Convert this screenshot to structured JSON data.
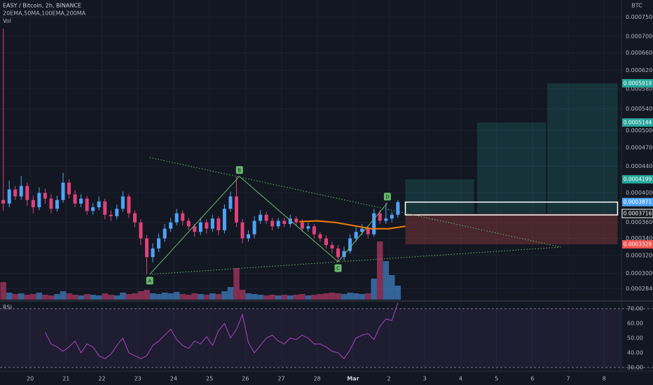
{
  "chart_data": {
    "type": "candlestick",
    "title": "EASY / Bitcoin, 2h, BINANCE",
    "indicators": "20EMA,50MA,100EMA,200MA",
    "volume_label": "Vol",
    "rsi_label": "RSI",
    "currency": "BTC",
    "log_scale": true,
    "up_color": "#4fa3f7",
    "down_color": "#e0417a",
    "xlim": [
      -20.2,
      395.6
    ],
    "xticks": [
      {
        "value": 0,
        "label": "20"
      },
      {
        "value": 24,
        "label": "21"
      },
      {
        "value": 48,
        "label": "22"
      },
      {
        "value": 72,
        "label": "23"
      },
      {
        "value": 96,
        "label": "24"
      },
      {
        "value": 120,
        "label": "25"
      },
      {
        "value": 144,
        "label": "26"
      },
      {
        "value": 168,
        "label": "27"
      },
      {
        "value": 192,
        "label": "28"
      },
      {
        "value": 216,
        "label": "Mar"
      },
      {
        "value": 240,
        "label": "2"
      },
      {
        "value": 264,
        "label": "3"
      },
      {
        "value": 288,
        "label": "4"
      },
      {
        "value": 312,
        "label": "5"
      },
      {
        "value": 336,
        "label": "6"
      },
      {
        "value": 360,
        "label": "7"
      },
      {
        "value": 384,
        "label": "8"
      }
    ],
    "ylim": [
      0.0002732,
      0.000797
    ],
    "yticks": [
      {
        "value": 0.00075,
        "label": "0.0007500"
      },
      {
        "value": 0.0007,
        "label": "0.0007000"
      },
      {
        "value": 0.00066,
        "label": "0.0006600"
      },
      {
        "value": 0.00062,
        "label": "0.0006200"
      },
      {
        "value": 0.00058,
        "label": "0.0005800"
      },
      {
        "value": 0.00054,
        "label": "0.0005400"
      },
      {
        "value": 0.0005,
        "label": "0.0005000"
      },
      {
        "value": 0.00047,
        "label": "0.0004700"
      },
      {
        "value": 0.00044,
        "label": "0.0004400"
      },
      {
        "value": 0.0004,
        "label": "0.0004000"
      },
      {
        "value": 0.00036,
        "label": "0.0003600"
      },
      {
        "value": 0.00034,
        "label": "0.0003400"
      },
      {
        "value": 0.00032,
        "label": "0.0003200"
      },
      {
        "value": 0.0003,
        "label": "0.0003000"
      },
      {
        "value": 0.000284,
        "label": "0.0002840"
      }
    ],
    "x": [
      -18,
      -14,
      -10,
      -6,
      -2,
      2,
      6,
      10,
      14,
      18,
      22,
      26,
      30,
      34,
      38,
      42,
      46,
      50,
      54,
      58,
      62,
      66,
      70,
      74,
      78,
      82,
      86,
      90,
      94,
      98,
      102,
      106,
      110,
      114,
      118,
      122,
      126,
      130,
      134,
      138,
      142,
      146,
      150,
      154,
      158,
      162,
      166,
      170,
      174,
      178,
      182,
      186,
      190,
      194,
      198,
      202,
      206,
      210,
      214,
      218,
      222,
      226,
      230,
      234,
      238,
      242,
      246
    ],
    "open": [
      0.00039,
      0.000385,
      0.000405,
      0.000395,
      0.00041,
      0.00039,
      0.00038,
      0.0004,
      0.000392,
      0.000378,
      0.00039,
      0.000415,
      0.000398,
      0.000385,
      0.000392,
      0.000375,
      0.00038,
      0.000388,
      0.00037,
      0.000368,
      0.000378,
      0.000395,
      0.000372,
      0.00036,
      0.00034,
      0.000318,
      0.000328,
      0.00034,
      0.000352,
      0.00036,
      0.000372,
      0.000362,
      0.000355,
      0.000348,
      0.00036,
      0.000352,
      0.000365,
      0.00035,
      0.000378,
      0.000395,
      0.00036,
      0.00034,
      0.000345,
      0.000362,
      0.00037,
      0.000362,
      0.000355,
      0.000362,
      0.000358,
      0.000365,
      0.00036,
      0.000352,
      0.000355,
      0.000345,
      0.00034,
      0.000332,
      0.000328,
      0.000318,
      0.000325,
      0.00034,
      0.000348,
      0.000352,
      0.000345,
      0.000372,
      0.000362,
      0.000365,
      0.00037
    ],
    "high": [
      0.00072,
      0.000418,
      0.00041,
      0.000425,
      0.000415,
      0.000396,
      0.000408,
      0.000406,
      0.000398,
      0.000396,
      0.00043,
      0.00042,
      0.000404,
      0.000398,
      0.000396,
      0.000386,
      0.000395,
      0.000392,
      0.000376,
      0.000384,
      0.000402,
      0.000398,
      0.000376,
      0.000364,
      0.000344,
      0.000334,
      0.000346,
      0.000358,
      0.000366,
      0.000378,
      0.000376,
      0.000366,
      0.000358,
      0.000366,
      0.000364,
      0.00037,
      0.000368,
      0.000384,
      0.000402,
      0.000424,
      0.000364,
      0.00035,
      0.000368,
      0.000376,
      0.000374,
      0.000366,
      0.000366,
      0.000366,
      0.00037,
      0.000368,
      0.000364,
      0.00036,
      0.000358,
      0.000348,
      0.000344,
      0.000336,
      0.000332,
      0.00033,
      0.000345,
      0.000354,
      0.000358,
      0.000356,
      0.000378,
      0.000376,
      0.000386,
      0.000374,
      0.00039
    ],
    "low": [
      0.000375,
      0.00038,
      0.00039,
      0.00039,
      0.000382,
      0.000372,
      0.000376,
      0.000385,
      0.000372,
      0.000374,
      0.000386,
      0.000392,
      0.00038,
      0.00038,
      0.00037,
      0.00037,
      0.000376,
      0.000364,
      0.000362,
      0.000364,
      0.000374,
      0.000366,
      0.000354,
      0.000332,
      0.000299,
      0.000312,
      0.000324,
      0.000336,
      0.000348,
      0.000356,
      0.000356,
      0.00035,
      0.000342,
      0.000344,
      0.000346,
      0.000348,
      0.000344,
      0.000346,
      0.000374,
      0.000354,
      0.000334,
      0.000336,
      0.00034,
      0.000358,
      0.000358,
      0.00035,
      0.000352,
      0.000354,
      0.000354,
      0.000356,
      0.000348,
      0.000348,
      0.00034,
      0.000336,
      0.000328,
      0.000322,
      0.000313,
      0.000314,
      0.000322,
      0.000336,
      0.000344,
      0.00034,
      0.000342,
      0.000358,
      0.000358,
      0.00036,
      0.000366
    ],
    "close": [
      0.000385,
      0.000405,
      0.000395,
      0.00041,
      0.00039,
      0.00038,
      0.0004,
      0.000392,
      0.000378,
      0.00039,
      0.000415,
      0.000398,
      0.000385,
      0.000392,
      0.000375,
      0.00038,
      0.000388,
      0.00037,
      0.000368,
      0.000378,
      0.000395,
      0.000372,
      0.00036,
      0.00034,
      0.000318,
      0.000328,
      0.00034,
      0.000352,
      0.00036,
      0.000372,
      0.000362,
      0.000355,
      0.000348,
      0.00036,
      0.000352,
      0.000365,
      0.00035,
      0.000378,
      0.000395,
      0.00036,
      0.00034,
      0.000345,
      0.000362,
      0.00037,
      0.000362,
      0.000355,
      0.000362,
      0.000358,
      0.000365,
      0.00036,
      0.000352,
      0.000355,
      0.000345,
      0.00034,
      0.000332,
      0.000328,
      0.000318,
      0.000325,
      0.00034,
      0.000348,
      0.000352,
      0.000345,
      0.000372,
      0.000362,
      0.000365,
      0.00037,
      0.0003871
    ],
    "volume": {
      "ylim": [
        0,
        100
      ],
      "values": [
        25,
        10,
        8,
        9,
        7,
        8,
        10,
        7,
        6,
        8,
        12,
        9,
        7,
        6,
        8,
        7,
        6,
        9,
        7,
        6,
        10,
        8,
        9,
        12,
        14,
        9,
        8,
        10,
        9,
        11,
        8,
        7,
        9,
        8,
        7,
        9,
        8,
        12,
        18,
        45,
        14,
        9,
        8,
        7,
        6,
        7,
        6,
        7,
        6,
        7,
        8,
        6,
        7,
        8,
        9,
        10,
        9,
        8,
        10,
        9,
        8,
        9,
        30,
        83,
        55,
        35,
        20
      ]
    },
    "ma": {
      "color": "#f57c00",
      "x": [
        180,
        192,
        204,
        216,
        228,
        240,
        251
      ],
      "values": [
        0.000361,
        0.000362,
        0.00036,
        0.000356,
        0.000352,
        0.000352,
        0.000355
      ]
    },
    "pattern": {
      "color": "#66bb6a",
      "points": [
        {
          "label": "A",
          "x": 80,
          "y": 0.000299
        },
        {
          "label": "B",
          "x": 140,
          "y": 0.0004244
        },
        {
          "label": "C",
          "x": 206,
          "y": 0.0003127
        },
        {
          "label": "D",
          "x": 239,
          "y": 0.0003859
        }
      ],
      "triangle": {
        "x": [
          80,
          355,
          80
        ],
        "y": [
          0.000454,
          0.0003296,
          0.000299
        ]
      }
    },
    "position": {
      "entry": 0.0003716,
      "stop": 0.0003329,
      "targets": [
        0.0004199,
        0.0005144,
        0.0005919
      ],
      "x_start": [
        251,
        299,
        346
      ],
      "x_end": [
        297,
        345,
        393
      ],
      "target_color": "#26a69a",
      "stop_color": "#ef5350"
    },
    "rsi": {
      "color": "#ab47bc",
      "ylim": [
        27.6,
        74.3
      ],
      "bands": [
        70,
        30
      ],
      "yticks": [
        {
          "value": 70,
          "label": "70.00"
        },
        {
          "value": 60,
          "label": "60.00"
        },
        {
          "value": 50,
          "label": "50.00"
        },
        {
          "value": 40,
          "label": "40.00"
        },
        {
          "value": 30,
          "label": "30.00"
        }
      ],
      "values": [
        null,
        null,
        null,
        null,
        null,
        null,
        null,
        54,
        46,
        44,
        41,
        44,
        48,
        40,
        46,
        44,
        38,
        36,
        39,
        45,
        50,
        40,
        38,
        36,
        38,
        45,
        48,
        52,
        56,
        49,
        45,
        43,
        48,
        46,
        51,
        45,
        55,
        60,
        50,
        56,
        66,
        47,
        40,
        45,
        50,
        52,
        48,
        46,
        50,
        49,
        52,
        50,
        46,
        46,
        44,
        41,
        40,
        36,
        42,
        50,
        52,
        53,
        49,
        58,
        63,
        62,
        74
      ]
    }
  }
}
